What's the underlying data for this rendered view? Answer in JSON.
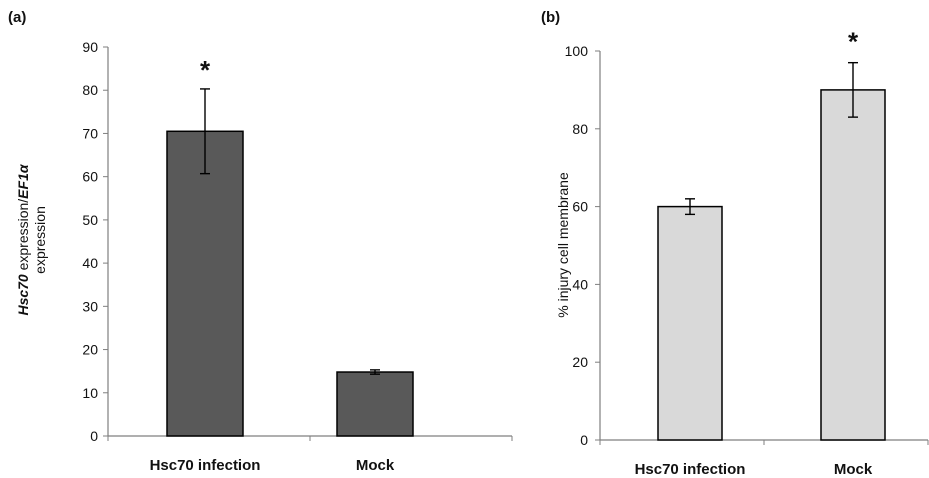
{
  "chart_data": [
    {
      "type": "bar",
      "panel_label": "(a)",
      "categories": [
        "Hsc70 infection",
        "Mock"
      ],
      "values": [
        70.5,
        14.8
      ],
      "errors": [
        9.8,
        0.5
      ],
      "significance": [
        "*",
        ""
      ],
      "ylim": [
        0,
        90
      ],
      "yticks": [
        "0",
        "10",
        "20",
        "30",
        "40",
        "50",
        "60",
        "70",
        "80",
        "90"
      ],
      "ylabel_parts": [
        {
          "text": "Hsc70",
          "italic": true
        },
        {
          "text": " expression/",
          "italic": false
        },
        {
          "text": "EF1α",
          "italic": true
        }
      ],
      "ylabel_line2": "expression",
      "bar_color": "#595959",
      "grid": false
    },
    {
      "type": "bar",
      "panel_label": "(b)",
      "categories": [
        "Hsc70 infection",
        "Mock"
      ],
      "values": [
        60,
        90
      ],
      "errors": [
        2,
        7
      ],
      "significance": [
        "",
        "*"
      ],
      "ylim": [
        0,
        100
      ],
      "yticks": [
        "0",
        "20",
        "40",
        "60",
        "80",
        "100"
      ],
      "ylabel": "% injury cell membrane",
      "bar_color": "#d9d9d9",
      "grid": false
    }
  ]
}
